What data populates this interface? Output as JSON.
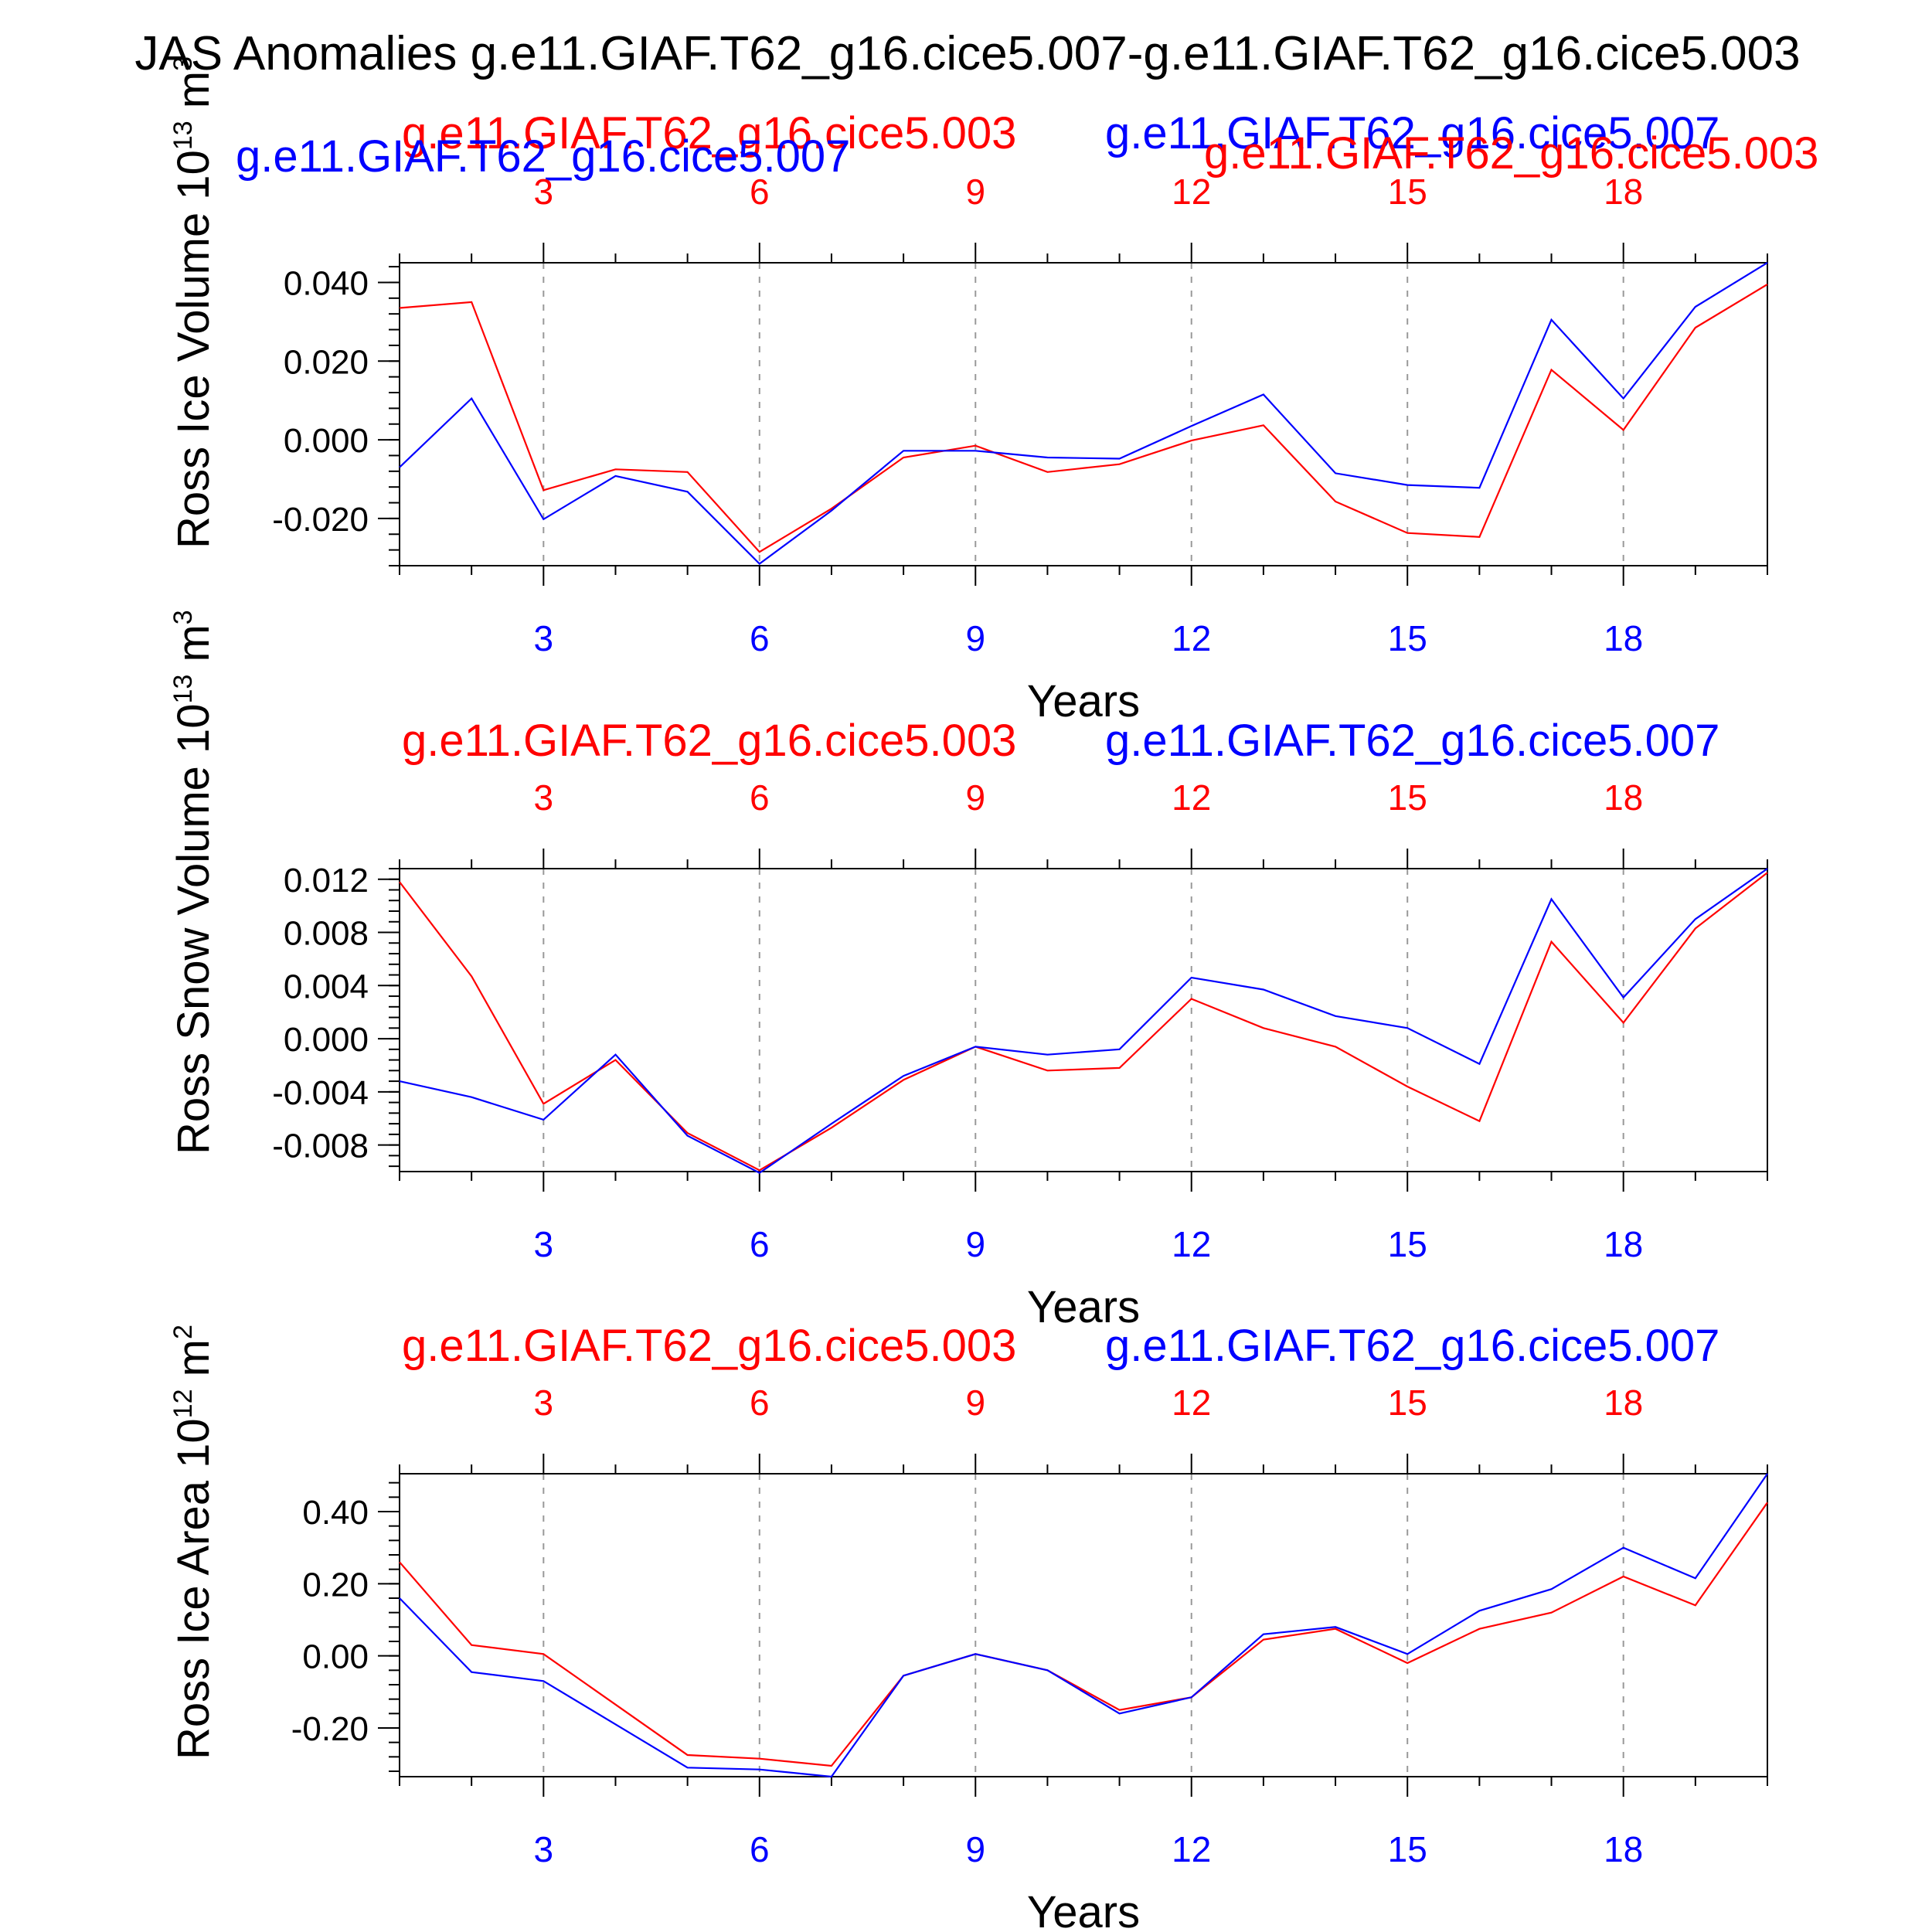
{
  "figure": {
    "title": "JAS Anomalies g.e11.GIAF.T62_g16.cice5.007-g.e11.GIAF.T62_g16.cice5.003",
    "colors": {
      "red": "#ff0000",
      "blue": "#0000ff",
      "axis": "#000000",
      "grid": "#999999"
    }
  },
  "chart_data": [
    {
      "type": "line",
      "ylabel_main": "Ross Ice Volume 10",
      "ylabel_exp": "13",
      "ylabel_unit": " m",
      "ylabel_unit_exp": "3",
      "xlabel": "Years",
      "xlim": [
        1,
        20
      ],
      "ylim": [
        -0.032,
        0.045
      ],
      "xticks": [
        3,
        6,
        9,
        12,
        15,
        18
      ],
      "xtick_labels": [
        "3",
        "6",
        "9",
        "12",
        "15",
        "18"
      ],
      "yticks": [
        -0.02,
        0.0,
        0.02,
        0.04
      ],
      "ytick_labels": [
        "-0.020",
        "0.000",
        "0.020",
        "0.040"
      ],
      "y_minor_step": 0.004,
      "grid": "vertical dashed at major x ticks",
      "series_labels_top": [
        {
          "text": "g.e11.GIAF.T62_g16.cice5.003",
          "color": "#ff0000"
        },
        {
          "text": "g.e11.GIAF.T62_g16.cice5.007",
          "color": "#0000ff"
        },
        {
          "text": "g.e11.GIAF.T62_g16.cice5.007",
          "color": "#0000ff"
        },
        {
          "text": "g.e11.GIAF.T62_g16.cice5.003",
          "color": "#ff0000"
        }
      ],
      "x": [
        1,
        2,
        3,
        4,
        5,
        6,
        7,
        8,
        9,
        10,
        11,
        12,
        13,
        14,
        15,
        16,
        17,
        18,
        19,
        20
      ],
      "series": [
        {
          "name": "g.e11.GIAF.T62_g16.cice5.003",
          "color": "#ff0000",
          "values": [
            0.0335,
            0.035,
            -0.0128,
            -0.0075,
            -0.0082,
            -0.0285,
            -0.0175,
            -0.0045,
            -0.0015,
            -0.0082,
            -0.0062,
            -0.0002,
            0.0037,
            -0.0157,
            -0.0237,
            -0.0247,
            0.0178,
            0.0025,
            0.0285,
            0.0395
          ]
        },
        {
          "name": "g.e11.GIAF.T62_g16.cice5.007",
          "color": "#0000ff",
          "values": [
            -0.007,
            0.0105,
            -0.0202,
            -0.0092,
            -0.0132,
            -0.0315,
            -0.018,
            -0.0028,
            -0.0028,
            -0.0045,
            -0.0048,
            0.0035,
            0.0115,
            -0.0085,
            -0.0115,
            -0.0122,
            0.0305,
            0.0105,
            0.0338,
            0.045
          ]
        }
      ]
    },
    {
      "type": "line",
      "ylabel_main": "Ross Snow Volume 10",
      "ylabel_exp": "13",
      "ylabel_unit": " m",
      "ylabel_unit_exp": "3",
      "xlabel": "Years",
      "xlim": [
        1,
        20
      ],
      "ylim": [
        -0.01,
        0.0128
      ],
      "xticks": [
        3,
        6,
        9,
        12,
        15,
        18
      ],
      "xtick_labels": [
        "3",
        "6",
        "9",
        "12",
        "15",
        "18"
      ],
      "yticks": [
        -0.008,
        -0.004,
        0.0,
        0.004,
        0.008,
        0.012
      ],
      "ytick_labels": [
        "-0.008",
        "-0.004",
        "0.000",
        "0.004",
        "0.008",
        "0.012"
      ],
      "y_minor_step": 0.0008,
      "grid": "vertical dashed at major x ticks",
      "series_labels_top": [
        {
          "text": "g.e11.GIAF.T62_g16.cice5.003",
          "color": "#ff0000"
        },
        {
          "text": "g.e11.GIAF.T62_g16.cice5.007",
          "color": "#0000ff"
        }
      ],
      "x": [
        1,
        2,
        3,
        4,
        5,
        6,
        7,
        8,
        9,
        10,
        11,
        12,
        13,
        14,
        15,
        16,
        17,
        18,
        19,
        20
      ],
      "series": [
        {
          "name": "g.e11.GIAF.T62_g16.cice5.003",
          "color": "#ff0000",
          "values": [
            0.0118,
            0.0047,
            -0.0049,
            -0.0016,
            -0.0071,
            -0.0099,
            -0.0067,
            -0.0031,
            -0.0006,
            -0.0024,
            -0.0022,
            0.003,
            0.0008,
            -0.0006,
            -0.0036,
            -0.0062,
            0.0073,
            0.0012,
            0.0083,
            0.0125
          ]
        },
        {
          "name": "g.e11.GIAF.T62_g16.cice5.007",
          "color": "#0000ff",
          "values": [
            -0.0032,
            -0.0044,
            -0.0061,
            -0.0012,
            -0.0073,
            -0.0101,
            -0.0064,
            -0.0028,
            -0.0006,
            -0.0012,
            -0.0008,
            0.0046,
            0.0037,
            0.0017,
            0.0008,
            -0.0019,
            0.0105,
            0.0031,
            0.009,
            0.0128
          ]
        }
      ]
    },
    {
      "type": "line",
      "ylabel_main": "Ross Ice Area 10",
      "ylabel_exp": "12",
      "ylabel_unit": " m",
      "ylabel_unit_exp": "2",
      "xlabel": "Years",
      "xlim": [
        1,
        20
      ],
      "ylim": [
        -0.335,
        0.505
      ],
      "xticks": [
        3,
        6,
        9,
        12,
        15,
        18
      ],
      "xtick_labels": [
        "3",
        "6",
        "9",
        "12",
        "15",
        "18"
      ],
      "yticks": [
        -0.2,
        0.0,
        0.2,
        0.4
      ],
      "ytick_labels": [
        "-0.20",
        "0.00",
        "0.20",
        "0.40"
      ],
      "y_minor_step": 0.04,
      "grid": "vertical dashed at major x ticks",
      "series_labels_top": [
        {
          "text": "g.e11.GIAF.T62_g16.cice5.003",
          "color": "#ff0000"
        },
        {
          "text": "g.e11.GIAF.T62_g16.cice5.007",
          "color": "#0000ff"
        }
      ],
      "x": [
        1,
        2,
        3,
        4,
        5,
        6,
        7,
        8,
        9,
        10,
        11,
        12,
        13,
        14,
        15,
        16,
        17,
        18,
        19,
        20
      ],
      "series": [
        {
          "name": "g.e11.GIAF.T62_g16.cice5.003",
          "color": "#ff0000",
          "values": [
            0.26,
            0.03,
            0.005,
            -0.135,
            -0.275,
            -0.285,
            -0.305,
            -0.055,
            0.005,
            -0.04,
            -0.15,
            -0.115,
            0.045,
            0.075,
            -0.02,
            0.075,
            0.12,
            0.22,
            0.14,
            0.425
          ]
        },
        {
          "name": "g.e11.GIAF.T62_g16.cice5.007",
          "color": "#0000ff",
          "values": [
            0.16,
            -0.045,
            -0.07,
            -0.19,
            -0.31,
            -0.315,
            -0.335,
            -0.055,
            0.005,
            -0.04,
            -0.16,
            -0.115,
            0.06,
            0.08,
            0.005,
            0.125,
            0.185,
            0.3,
            0.215,
            0.505
          ]
        }
      ]
    }
  ]
}
